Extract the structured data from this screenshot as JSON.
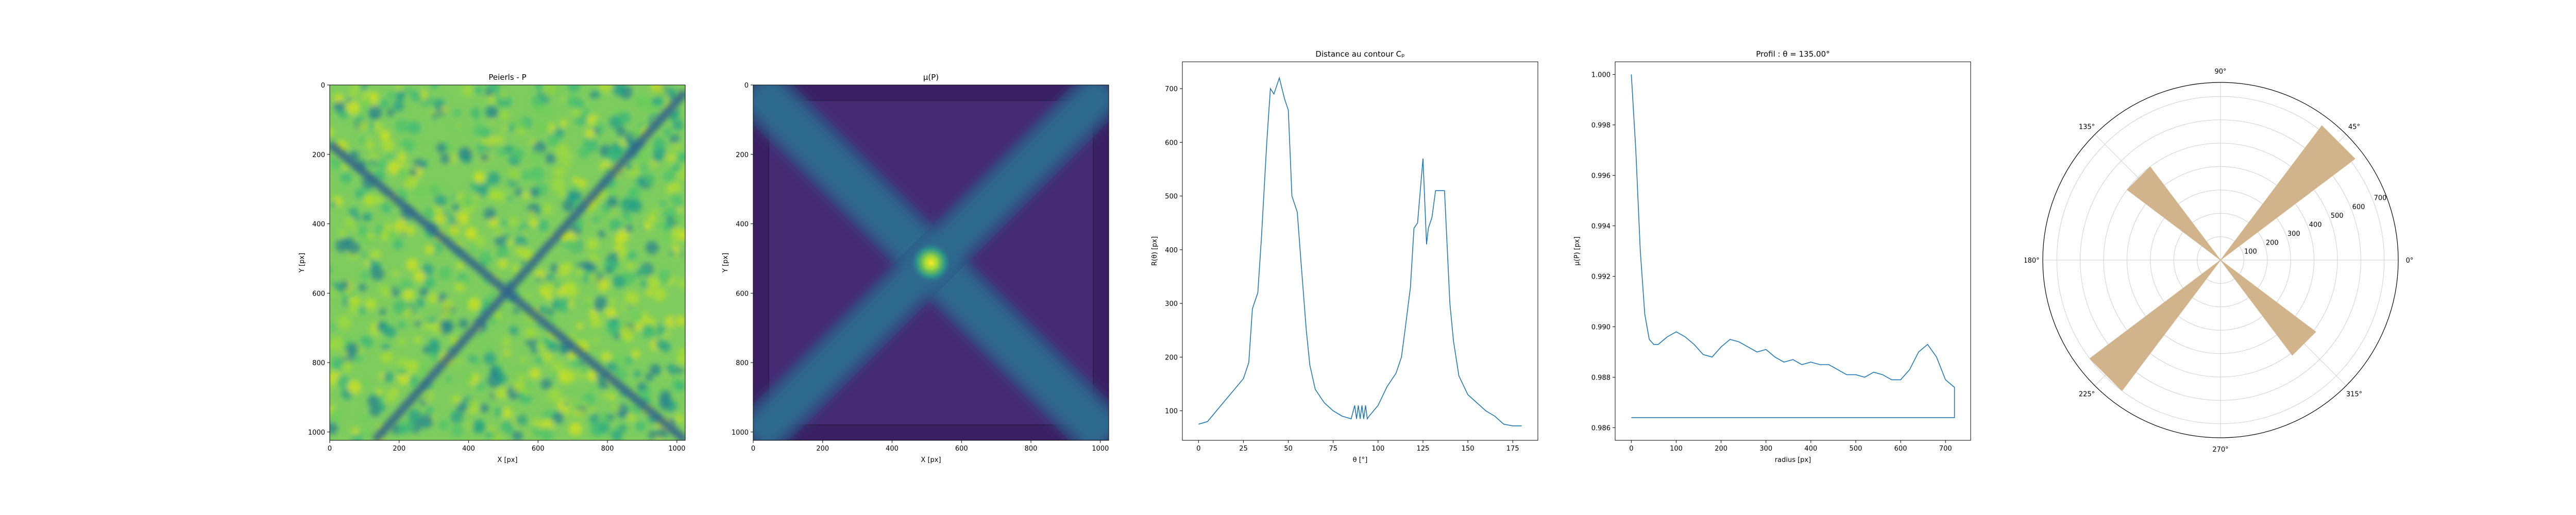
{
  "chart_data": [
    {
      "type": "heatmap",
      "title": "Peierls - P",
      "xlabel": "X [px]",
      "ylabel": "Y [px]",
      "xticks": [
        0,
        200,
        400,
        600,
        800,
        1000
      ],
      "yticks": [
        0,
        200,
        400,
        600,
        800,
        1000
      ],
      "xlim": [
        0,
        1024
      ],
      "ylim": [
        1024,
        0
      ],
      "colormap": "viridis",
      "description_lines": [
        {
          "from": [
            0,
            170
          ],
          "to": [
            1024,
            1024
          ]
        },
        {
          "from": [
            1024,
            20
          ],
          "to": [
            130,
            1024
          ]
        }
      ]
    },
    {
      "type": "heatmap",
      "title": "μ(P)",
      "xlabel": "X [px]",
      "ylabel": "Y [px]",
      "xticks": [
        0,
        200,
        400,
        600,
        800,
        1000
      ],
      "yticks": [
        0,
        200,
        400,
        600,
        800,
        1000
      ],
      "xlim": [
        0,
        1024
      ],
      "ylim": [
        1024,
        0
      ],
      "colormap": "viridis",
      "peak": [
        512,
        512
      ]
    },
    {
      "type": "line",
      "title": "Distance au contour Cₚ",
      "xlabel": "θ [°]",
      "ylabel": "R(θ) [px]",
      "xticks": [
        0,
        25,
        50,
        75,
        100,
        125,
        150,
        175
      ],
      "yticks": [
        100,
        200,
        300,
        400,
        500,
        600,
        700
      ],
      "xlim": [
        -9,
        189
      ],
      "ylim": [
        45,
        750
      ],
      "color": "#1f77b4",
      "series": [
        {
          "x": [
            0,
            5,
            10,
            15,
            20,
            25,
            28,
            30,
            33,
            35,
            38,
            40,
            42,
            45,
            48,
            50,
            52,
            55,
            57,
            60,
            62,
            65,
            70,
            75,
            80,
            85,
            87,
            88,
            89,
            90,
            91,
            92,
            93,
            94,
            95,
            100,
            105,
            110,
            113,
            115,
            118,
            120,
            122,
            125,
            127,
            128,
            130,
            132,
            133,
            135,
            137,
            140,
            142,
            145,
            150,
            155,
            160,
            165,
            170,
            175,
            180
          ],
          "y": [
            75,
            80,
            100,
            120,
            140,
            160,
            190,
            290,
            320,
            420,
            600,
            700,
            690,
            720,
            680,
            660,
            500,
            470,
            380,
            250,
            185,
            140,
            115,
            100,
            90,
            85,
            110,
            85,
            110,
            85,
            110,
            85,
            110,
            85,
            90,
            110,
            145,
            170,
            200,
            250,
            330,
            440,
            450,
            570,
            410,
            440,
            460,
            510,
            510,
            510,
            510,
            300,
            230,
            165,
            130,
            115,
            100,
            90,
            75,
            72,
            72
          ]
        }
      ]
    },
    {
      "type": "line",
      "title": "Profil : θ = 135.00°",
      "xlabel": "radius [px]",
      "ylabel": "μ(P) [px]",
      "xticks": [
        0,
        100,
        200,
        300,
        400,
        500,
        600,
        700
      ],
      "yticks": [
        0.986,
        0.988,
        0.99,
        0.992,
        0.994,
        0.996,
        0.998,
        1.0
      ],
      "ytick_labels": [
        "0.986",
        "0.988",
        "0.990",
        "0.992",
        "0.994",
        "0.996",
        "0.998",
        "1.000"
      ],
      "xlim": [
        -36,
        756
      ],
      "ylim": [
        0.9855,
        1.0005
      ],
      "color": "#1f77b4",
      "series": [
        {
          "x": [
            0,
            10,
            20,
            30,
            40,
            50,
            60,
            80,
            100,
            120,
            140,
            160,
            180,
            200,
            220,
            240,
            260,
            280,
            300,
            320,
            340,
            360,
            380,
            400,
            420,
            440,
            460,
            480,
            500,
            520,
            540,
            560,
            580,
            600,
            620,
            640,
            660,
            680,
            700,
            720,
            720,
            0
          ],
          "y": [
            1.0,
            0.997,
            0.993,
            0.9905,
            0.9895,
            0.9893,
            0.9893,
            0.9896,
            0.9898,
            0.9896,
            0.9893,
            0.9889,
            0.9888,
            0.9892,
            0.9895,
            0.9894,
            0.9892,
            0.989,
            0.9891,
            0.9888,
            0.9886,
            0.9887,
            0.9885,
            0.9886,
            0.9885,
            0.9885,
            0.9883,
            0.9881,
            0.9881,
            0.988,
            0.9882,
            0.9881,
            0.9879,
            0.9879,
            0.9883,
            0.989,
            0.9893,
            0.9888,
            0.9879,
            0.9876,
            0.9864,
            0.9864
          ]
        }
      ]
    },
    {
      "type": "polar",
      "angle_ticks": [
        "0°",
        "45°",
        "90°",
        "135°",
        "180°",
        "225°",
        "270°",
        "315°"
      ],
      "radial_ticks": [
        100,
        200,
        300,
        400,
        500,
        600,
        700
      ],
      "rmax": 760,
      "fill_color": "#d2b48c",
      "arms": [
        {
          "angle": 45,
          "r": 720
        },
        {
          "angle": 135,
          "r": 500
        },
        {
          "angle": 225,
          "r": 700
        },
        {
          "angle": 315,
          "r": 510
        }
      ]
    }
  ]
}
